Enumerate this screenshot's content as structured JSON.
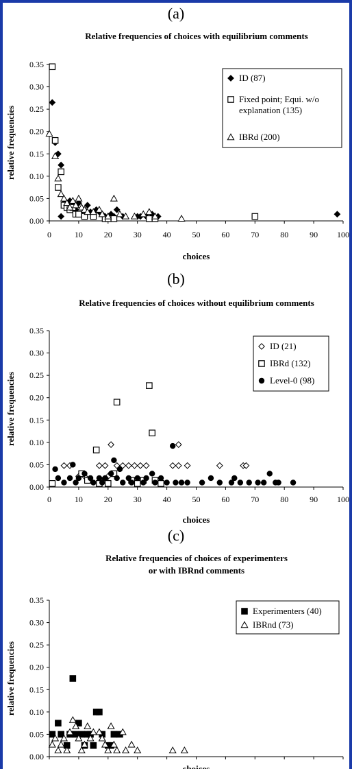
{
  "chart_data": [
    {
      "panel": "(a)",
      "type": "scatter",
      "title": "Relative frequencies of choices with equilibrium comments",
      "title_lines": [
        "Relative frequencies of choices with equilibrium comments"
      ],
      "xlabel": "choices",
      "ylabel": "relative frequencies",
      "xlim": [
        0,
        100
      ],
      "ylim": [
        0,
        0.35
      ],
      "xticks": [
        0,
        10,
        20,
        30,
        40,
        50,
        60,
        70,
        80,
        90,
        100
      ],
      "yticks": [
        0.0,
        0.05,
        0.1,
        0.15,
        0.2,
        0.25,
        0.3,
        0.35
      ],
      "ytick_labels": [
        "0.00",
        "0.05",
        "0.10",
        "0.15",
        "0.20",
        "0.25",
        "0.30",
        "0.35"
      ],
      "grid": false,
      "legend": "top-right",
      "series": [
        {
          "name": "ID (87)",
          "marker": "diamond-filled",
          "points": [
            [
              1,
              0.265
            ],
            [
              2,
              0.175
            ],
            [
              3,
              0.15
            ],
            [
              4,
              0.125
            ],
            [
              4,
              0.01
            ],
            [
              5,
              0.04
            ],
            [
              6,
              0.03
            ],
            [
              7,
              0.045
            ],
            [
              8,
              0.035
            ],
            [
              9,
              0.025
            ],
            [
              10,
              0.04
            ],
            [
              11,
              0.015
            ],
            [
              12,
              0.025
            ],
            [
              13,
              0.035
            ],
            [
              14,
              0.02
            ],
            [
              15,
              0.015
            ],
            [
              16,
              0.025
            ],
            [
              17,
              0.02
            ],
            [
              18,
              0.015
            ],
            [
              19,
              0.01
            ],
            [
              20,
              0.01
            ],
            [
              21,
              0.015
            ],
            [
              22,
              0.01
            ],
            [
              23,
              0.025
            ],
            [
              25,
              0.01
            ],
            [
              30,
              0.01
            ],
            [
              31,
              0.01
            ],
            [
              33,
              0.01
            ],
            [
              35,
              0.015
            ],
            [
              37,
              0.01
            ],
            [
              98,
              0.015
            ]
          ]
        },
        {
          "name": "Fixed point; Equi. w/o explanation (135)",
          "marker": "square-open",
          "points": [
            [
              1,
              0.345
            ],
            [
              2,
              0.18
            ],
            [
              3,
              0.075
            ],
            [
              4,
              0.11
            ],
            [
              5,
              0.035
            ],
            [
              6,
              0.03
            ],
            [
              7,
              0.025
            ],
            [
              8,
              0.03
            ],
            [
              9,
              0.015
            ],
            [
              10,
              0.015
            ],
            [
              12,
              0.01
            ],
            [
              15,
              0.01
            ],
            [
              19,
              0.005
            ],
            [
              20,
              0.005
            ],
            [
              22,
              0.005
            ],
            [
              34,
              0.005
            ],
            [
              36,
              0.005
            ],
            [
              70,
              0.01
            ]
          ]
        },
        {
          "name": "IBRd (200)",
          "marker": "triangle-open",
          "points": [
            [
              0,
              0.195
            ],
            [
              2,
              0.145
            ],
            [
              3,
              0.095
            ],
            [
              4,
              0.06
            ],
            [
              5,
              0.05
            ],
            [
              6,
              0.04
            ],
            [
              7,
              0.03
            ],
            [
              8,
              0.045
            ],
            [
              9,
              0.035
            ],
            [
              10,
              0.05
            ],
            [
              11,
              0.03
            ],
            [
              12,
              0.025
            ],
            [
              13,
              0.02
            ],
            [
              15,
              0.02
            ],
            [
              17,
              0.025
            ],
            [
              18,
              0.015
            ],
            [
              20,
              0.01
            ],
            [
              22,
              0.05
            ],
            [
              24,
              0.015
            ],
            [
              26,
              0.01
            ],
            [
              29,
              0.01
            ],
            [
              32,
              0.015
            ],
            [
              34,
              0.02
            ],
            [
              36,
              0.01
            ],
            [
              45,
              0.005
            ]
          ]
        }
      ]
    },
    {
      "panel": "(b)",
      "type": "scatter",
      "title": "Relative frequencies of choices without equilibrium comments",
      "title_lines": [
        "Relative frequencies of choices without equilibrium comments"
      ],
      "xlabel": "choices",
      "ylabel": "relative frequencies",
      "xlim": [
        0,
        100
      ],
      "ylim": [
        0,
        0.35
      ],
      "xticks": [
        0,
        10,
        20,
        30,
        40,
        50,
        60,
        70,
        80,
        90,
        100
      ],
      "yticks": [
        0.0,
        0.05,
        0.1,
        0.15,
        0.2,
        0.25,
        0.3,
        0.35
      ],
      "ytick_labels": [
        "0.00",
        "0.05",
        "0.10",
        "0.15",
        "0.20",
        "0.25",
        "0.30",
        "0.35"
      ],
      "grid": false,
      "legend": "top-right",
      "series": [
        {
          "name": "ID (21)",
          "marker": "diamond-open",
          "points": [
            [
              5,
              0.048
            ],
            [
              7,
              0.048
            ],
            [
              10,
              0.024
            ],
            [
              12,
              0.024
            ],
            [
              17,
              0.048
            ],
            [
              19,
              0.048
            ],
            [
              20,
              0.024
            ],
            [
              21,
              0.095
            ],
            [
              23,
              0.048
            ],
            [
              25,
              0.048
            ],
            [
              27,
              0.048
            ],
            [
              29,
              0.048
            ],
            [
              31,
              0.048
            ],
            [
              33,
              0.048
            ],
            [
              42,
              0.048
            ],
            [
              44,
              0.048
            ],
            [
              44,
              0.095
            ],
            [
              47,
              0.048
            ],
            [
              58,
              0.048
            ],
            [
              66,
              0.048
            ],
            [
              67,
              0.048
            ]
          ]
        },
        {
          "name": "IBRd (132)",
          "marker": "square-open",
          "points": [
            [
              1,
              0.008
            ],
            [
              11,
              0.03
            ],
            [
              13,
              0.015
            ],
            [
              16,
              0.083
            ],
            [
              17,
              0.008
            ],
            [
              19,
              0.015
            ],
            [
              20,
              0.008
            ],
            [
              22,
              0.03
            ],
            [
              23,
              0.19
            ],
            [
              28,
              0.015
            ],
            [
              30,
              0.008
            ],
            [
              32,
              0.015
            ],
            [
              34,
              0.227
            ],
            [
              35,
              0.121
            ],
            [
              36,
              0.015
            ],
            [
              38,
              0.008
            ]
          ]
        },
        {
          "name": "Level-0 (98)",
          "marker": "circle-filled",
          "points": [
            [
              2,
              0.04
            ],
            [
              3,
              0.02
            ],
            [
              5,
              0.01
            ],
            [
              7,
              0.02
            ],
            [
              8,
              0.05
            ],
            [
              9,
              0.01
            ],
            [
              10,
              0.02
            ],
            [
              12,
              0.03
            ],
            [
              14,
              0.02
            ],
            [
              15,
              0.01
            ],
            [
              17,
              0.02
            ],
            [
              18,
              0.01
            ],
            [
              19,
              0.02
            ],
            [
              21,
              0.03
            ],
            [
              22,
              0.06
            ],
            [
              23,
              0.02
            ],
            [
              24,
              0.04
            ],
            [
              25,
              0.01
            ],
            [
              27,
              0.02
            ],
            [
              28,
              0.01
            ],
            [
              30,
              0.02
            ],
            [
              32,
              0.01
            ],
            [
              33,
              0.02
            ],
            [
              35,
              0.03
            ],
            [
              36,
              0.01
            ],
            [
              38,
              0.02
            ],
            [
              40,
              0.01
            ],
            [
              42,
              0.092
            ],
            [
              43,
              0.01
            ],
            [
              45,
              0.01
            ],
            [
              47,
              0.01
            ],
            [
              52,
              0.01
            ],
            [
              55,
              0.02
            ],
            [
              58,
              0.01
            ],
            [
              62,
              0.01
            ],
            [
              63,
              0.02
            ],
            [
              65,
              0.01
            ],
            [
              68,
              0.01
            ],
            [
              71,
              0.01
            ],
            [
              73,
              0.01
            ],
            [
              75,
              0.03
            ],
            [
              77,
              0.01
            ],
            [
              78,
              0.01
            ],
            [
              83,
              0.01
            ]
          ]
        }
      ]
    },
    {
      "panel": "(c)",
      "type": "scatter",
      "title": "Relative frequencies of choices of experimenters or with IBRnd comments",
      "title_lines": [
        "Relative frequencies of choices of experimenters",
        "or with IBRnd comments"
      ],
      "xlabel": "choices",
      "ylabel": "relative frequencies",
      "xlim": [
        0,
        100
      ],
      "ylim": [
        0,
        0.35
      ],
      "xticks": [
        0,
        10,
        20,
        30,
        40,
        50,
        60,
        70,
        80,
        90,
        100
      ],
      "yticks": [
        0.0,
        0.05,
        0.1,
        0.15,
        0.2,
        0.25,
        0.3,
        0.35
      ],
      "ytick_labels": [
        "0.00",
        "0.05",
        "0.10",
        "0.15",
        "0.20",
        "0.25",
        "0.30",
        "0.35"
      ],
      "grid": false,
      "legend": "top-right",
      "series": [
        {
          "name": "Experimenters (40)",
          "marker": "square-filled",
          "points": [
            [
              1,
              0.05
            ],
            [
              3,
              0.075
            ],
            [
              4,
              0.05
            ],
            [
              6,
              0.025
            ],
            [
              7,
              0.05
            ],
            [
              8,
              0.175
            ],
            [
              9,
              0.05
            ],
            [
              10,
              0.075
            ],
            [
              11,
              0.05
            ],
            [
              12,
              0.025
            ],
            [
              13,
              0.05
            ],
            [
              14,
              0.05
            ],
            [
              15,
              0.025
            ],
            [
              16,
              0.1
            ],
            [
              17,
              0.1
            ],
            [
              18,
              0.05
            ],
            [
              20,
              0.025
            ],
            [
              21,
              0.025
            ],
            [
              22,
              0.05
            ],
            [
              24,
              0.05
            ]
          ]
        },
        {
          "name": "IBRnd (73)",
          "marker": "triangle-open",
          "points": [
            [
              1,
              0.027
            ],
            [
              2,
              0.041
            ],
            [
              3,
              0.014
            ],
            [
              4,
              0.027
            ],
            [
              5,
              0.041
            ],
            [
              6,
              0.014
            ],
            [
              7,
              0.055
            ],
            [
              8,
              0.082
            ],
            [
              9,
              0.068
            ],
            [
              10,
              0.041
            ],
            [
              11,
              0.014
            ],
            [
              12,
              0.027
            ],
            [
              13,
              0.068
            ],
            [
              14,
              0.041
            ],
            [
              15,
              0.055
            ],
            [
              17,
              0.055
            ],
            [
              18,
              0.041
            ],
            [
              19,
              0.027
            ],
            [
              20,
              0.014
            ],
            [
              21,
              0.068
            ],
            [
              22,
              0.027
            ],
            [
              23,
              0.014
            ],
            [
              25,
              0.055
            ],
            [
              26,
              0.014
            ],
            [
              28,
              0.027
            ],
            [
              30,
              0.014
            ],
            [
              42,
              0.014
            ],
            [
              46,
              0.014
            ]
          ]
        }
      ]
    }
  ]
}
